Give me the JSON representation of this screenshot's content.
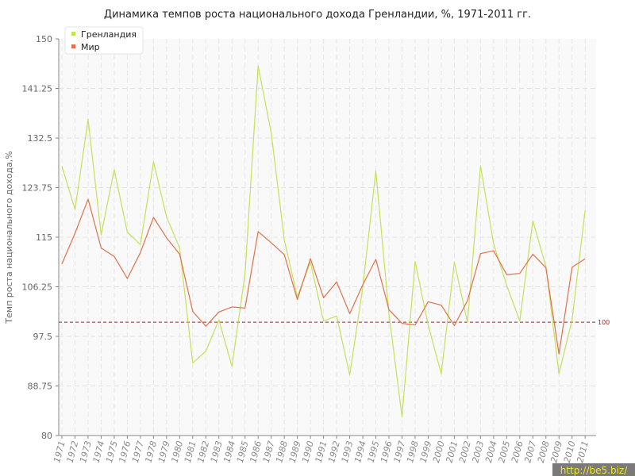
{
  "chart_data": {
    "type": "line",
    "title": "Динамика темпов роста национального дохода Гренландии, %, 1971-2011 гг.",
    "ylabel": "Темп роста национального дохода,%",
    "xlabel": "",
    "ylim": [
      80,
      150
    ],
    "yticks": [
      "150",
      "141.25",
      "132.5",
      "123.75",
      "115",
      "106.25",
      "97.5",
      "88.75",
      "80"
    ],
    "x": [
      "1971",
      "1972",
      "1973",
      "1974",
      "1975",
      "1976",
      "1977",
      "1978",
      "1979",
      "1980",
      "1981",
      "1982",
      "1983",
      "1984",
      "1985",
      "1986",
      "1987",
      "1988",
      "1989",
      "1990",
      "1991",
      "1992",
      "1993",
      "1994",
      "1995",
      "1996",
      "1997",
      "1998",
      "1999",
      "2000",
      "2001",
      "2002",
      "2003",
      "2004",
      "2005",
      "2006",
      "2007",
      "2008",
      "2009",
      "2010",
      "2011"
    ],
    "series": [
      {
        "name": "Гренландия",
        "color": "#c3e15a",
        "values": [
          127.5,
          119.9,
          135.8,
          115.4,
          126.9,
          115.9,
          113.7,
          128.3,
          118.6,
          113.1,
          92.8,
          94.9,
          100.4,
          92.2,
          108.5,
          145.2,
          133.4,
          114.5,
          104.5,
          110.6,
          100.2,
          101.1,
          90.7,
          106.1,
          126.7,
          101.5,
          83.3,
          110.7,
          99.5,
          90.9,
          110.6,
          100.0,
          127.6,
          113.9,
          106.5,
          100.2,
          117.9,
          109.8,
          90.9,
          100.4,
          119.8
        ]
      },
      {
        "name": "Мир",
        "color": "#e0714a",
        "values": [
          110.3,
          115.7,
          121.7,
          113.1,
          111.6,
          107.7,
          112.3,
          118.5,
          114.9,
          112.0,
          101.9,
          99.3,
          101.8,
          102.7,
          102.5,
          116.0,
          114.0,
          111.9,
          104.0,
          111.2,
          104.3,
          107.1,
          101.5,
          106.6,
          111.1,
          102.2,
          99.8,
          99.5,
          103.6,
          103.0,
          99.4,
          103.8,
          112.1,
          112.6,
          108.4,
          108.6,
          112.0,
          109.6,
          94.4,
          109.7,
          111.2
        ]
      }
    ],
    "reference_line": {
      "value": 100,
      "label": "100",
      "color": "#8b2a2a"
    },
    "legend_position": "top-left",
    "grid": true
  },
  "watermark": "http://be5.biz/"
}
